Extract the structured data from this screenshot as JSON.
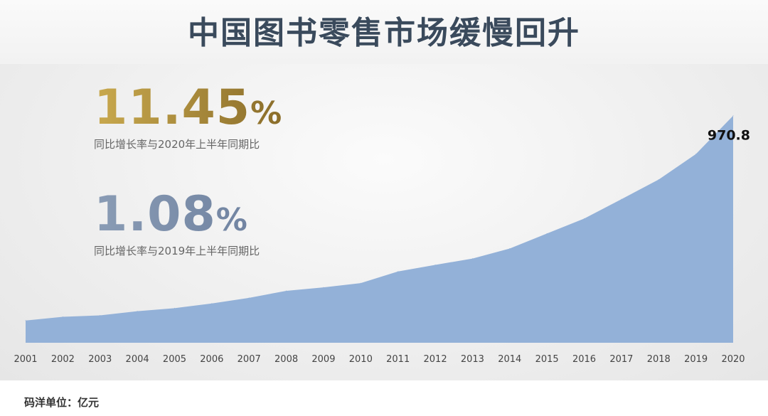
{
  "title": "中国图书零售市场缓慢回升",
  "stats": [
    {
      "value": "11.45",
      "unit": "%",
      "note": "同比增长率与2020年上半年同期比"
    },
    {
      "value": "1.08",
      "unit": "%",
      "note": "同比增长率与2019年上半年同期比"
    }
  ],
  "footer": "码洋单位：亿元",
  "colors": {
    "area": "#93b1d8",
    "title": "#3a4a5c"
  },
  "chart_data": {
    "type": "area",
    "x": [
      "2001",
      "2002",
      "2003",
      "2004",
      "2005",
      "2006",
      "2007",
      "2008",
      "2009",
      "2010",
      "2011",
      "2012",
      "2013",
      "2014",
      "2015",
      "2016",
      "2017",
      "2018",
      "2019",
      "2020"
    ],
    "series": [
      {
        "values": [
          95,
          111,
          117,
          135,
          148,
          168,
          192,
          222,
          237,
          255,
          305,
          333,
          360,
          403,
          467,
          531,
          614,
          698,
          807,
          971
        ]
      }
    ],
    "last_label": "970.8",
    "ylim": [
      0,
      1040
    ],
    "grid": false,
    "title": "中国图书零售市场缓慢回升"
  }
}
